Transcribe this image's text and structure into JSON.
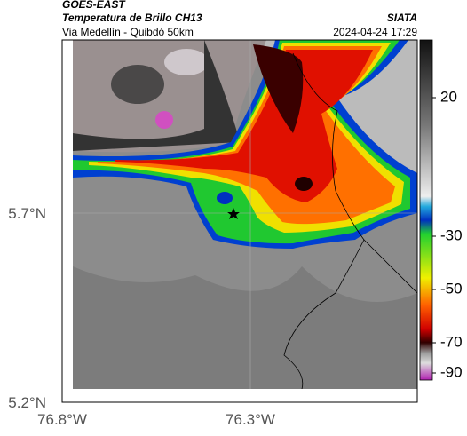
{
  "header": {
    "title": "GOES-EAST",
    "product": "Temperatura de Brillo CH13",
    "agency": "SIATA",
    "region": "Via Medellín - Quibdó 50km",
    "timestamp": "2024-04-24 17:29"
  },
  "axes": {
    "y_labels": [
      "5.7°N",
      "5.2°N"
    ],
    "x_labels": [
      "76.8°W",
      "76.3°W"
    ]
  },
  "colorbar": {
    "ticks": [
      20,
      -30,
      -50,
      -70,
      -90
    ]
  }
}
